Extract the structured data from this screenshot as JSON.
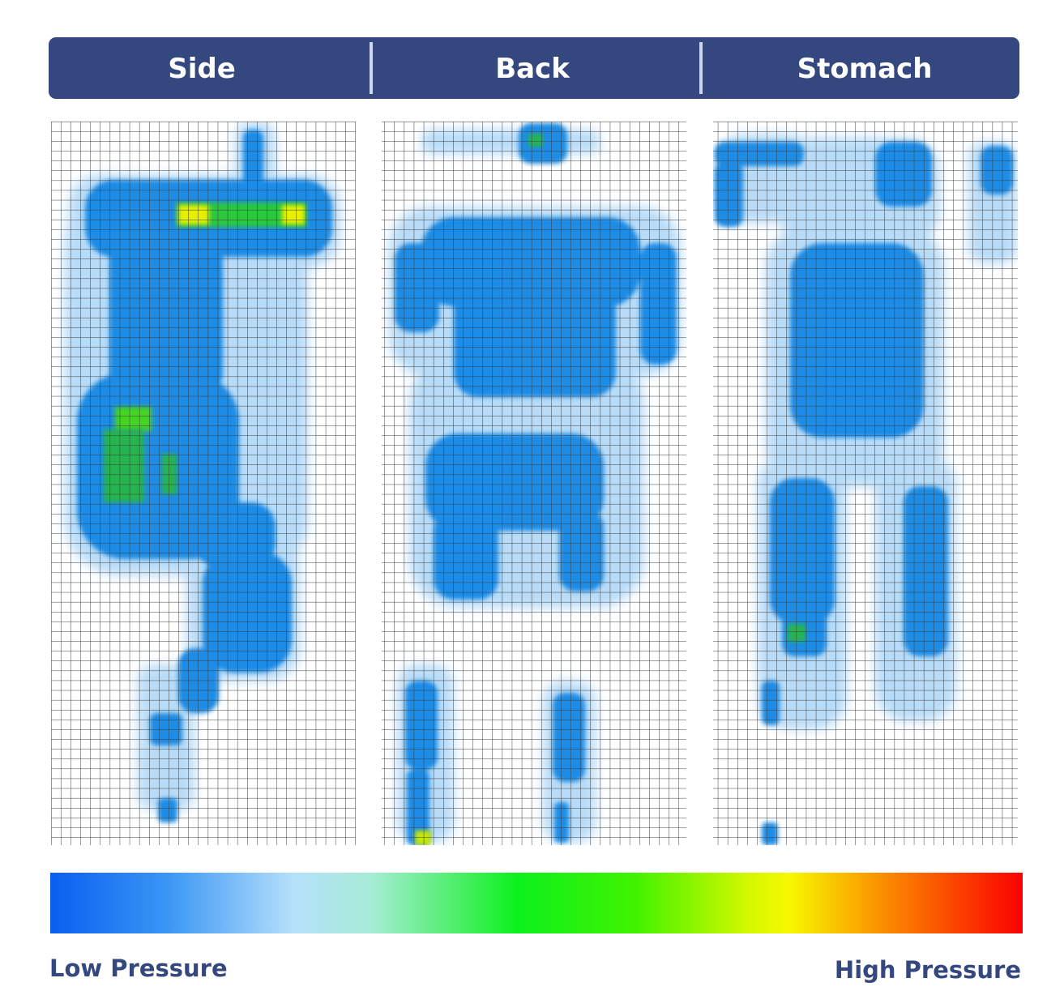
{
  "header": {
    "tabs": [
      "Side",
      "Back",
      "Stomach"
    ]
  },
  "legend": {
    "low": "Low Pressure",
    "high": "High Pressure"
  }
}
